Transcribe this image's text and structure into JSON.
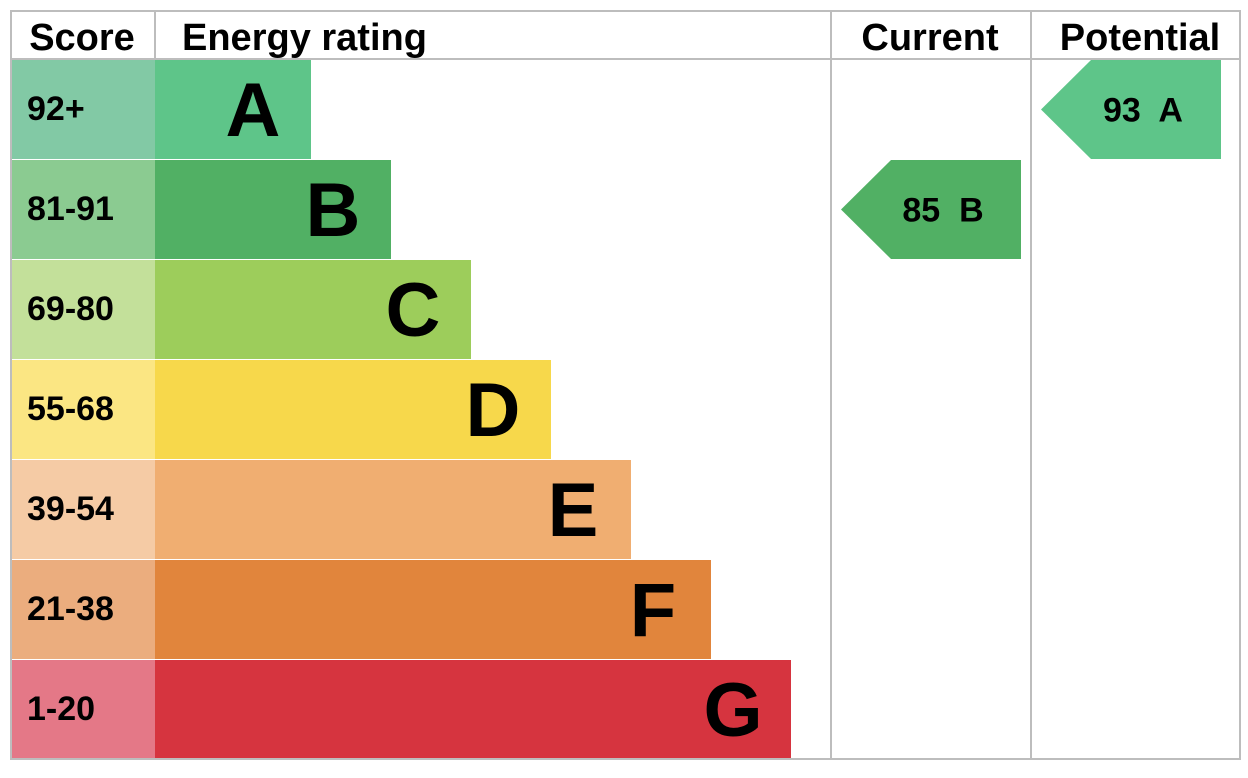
{
  "chart_data": {
    "type": "bar",
    "headers": {
      "score": "Score",
      "energy_rating": "Energy rating",
      "current": "Current",
      "potential": "Potential"
    },
    "bands": [
      {
        "score": "92+",
        "letter": "A",
        "band_color": "#5ec589",
        "score_color": "#82c9a5"
      },
      {
        "score": "81-91",
        "letter": "B",
        "band_color": "#51b064",
        "score_color": "#8bcb91"
      },
      {
        "score": "69-80",
        "letter": "C",
        "band_color": "#9dcd5b",
        "score_color": "#c3e09a"
      },
      {
        "score": "55-68",
        "letter": "D",
        "band_color": "#f7d84b",
        "score_color": "#fbe683"
      },
      {
        "score": "39-54",
        "letter": "E",
        "band_color": "#f0ae71",
        "score_color": "#f5cba5"
      },
      {
        "score": "21-38",
        "letter": "F",
        "band_color": "#e1853c",
        "score_color": "#ebad7e"
      },
      {
        "score": "1-20",
        "letter": "G",
        "band_color": "#d6343f",
        "score_color": "#e47887"
      }
    ],
    "current": {
      "value": 85,
      "letter": "B",
      "label": "85  B",
      "color": "#51b064"
    },
    "potential": {
      "value": 93,
      "letter": "A",
      "label": "93  A",
      "color": "#5ec589"
    }
  }
}
